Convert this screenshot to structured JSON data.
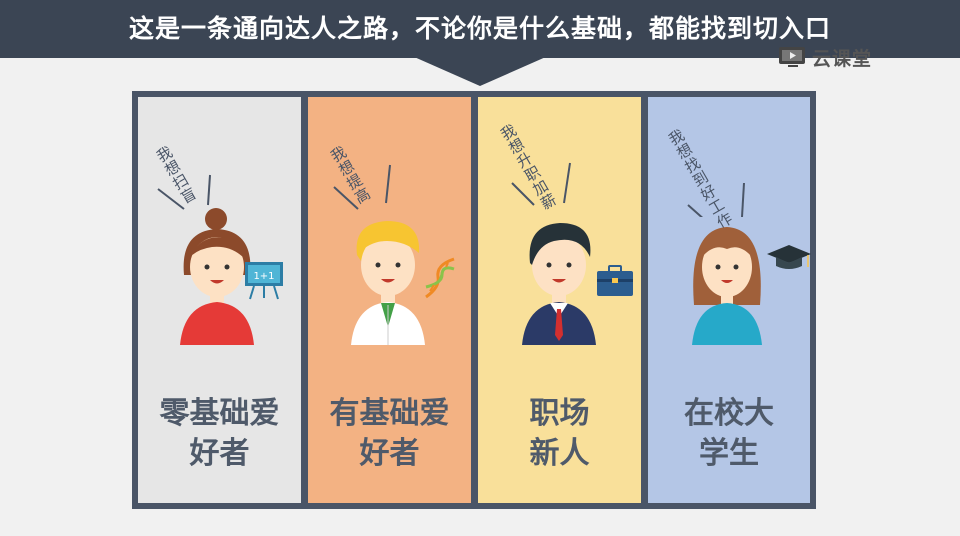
{
  "header": {
    "title": "这是一条通向达人之路，不论你是什么基础，都能找到切入口"
  },
  "logo": {
    "text": "云课堂",
    "icon": "video-screen-icon"
  },
  "columns": [
    {
      "id": "hobbyist-zero",
      "color": "#e6e6e6",
      "thought": "我想扫盲",
      "label_line1": "零基础爱",
      "label_line2": "好者",
      "prop_icon": "blackboard-icon",
      "prop_text": "1+1"
    },
    {
      "id": "hobbyist-basic",
      "color": "#f3b283",
      "thought": "我想提高",
      "label_line1": "有基础爱",
      "label_line2": "好者",
      "prop_icon": "dna-icon"
    },
    {
      "id": "workplace-newcomer",
      "color": "#f9e09a",
      "thought": "我想升职加薪",
      "label_line1": "职场",
      "label_line2": "新人",
      "prop_icon": "briefcase-icon"
    },
    {
      "id": "college-student",
      "color": "#b4c6e6",
      "thought": "我想找到好工作",
      "label_line1": "在校大",
      "label_line2": "学生",
      "prop_icon": "graduation-cap-icon"
    }
  ]
}
